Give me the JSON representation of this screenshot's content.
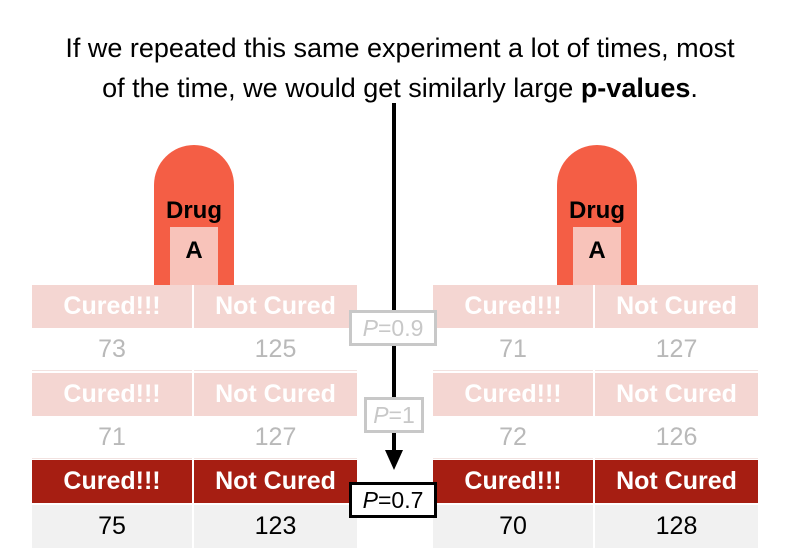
{
  "caption": {
    "line1": "If we repeated this same experiment a lot of times, most",
    "line2_prefix": "of the time, we would get similarly large ",
    "line2_bold": "p-values",
    "line2_suffix": "."
  },
  "pills": [
    {
      "line1": "Drug",
      "line2": "A"
    },
    {
      "line1": "Drug",
      "line2": "A"
    }
  ],
  "headers": {
    "cured": "Cured!!!",
    "not_cured": "Not Cured"
  },
  "left_table": {
    "rows": [
      {
        "cured": "73",
        "not_cured": "125"
      },
      {
        "cured": "71",
        "not_cured": "127"
      },
      {
        "cured": "75",
        "not_cured": "123"
      }
    ]
  },
  "right_table": {
    "rows": [
      {
        "cured": "71",
        "not_cured": "127"
      },
      {
        "cured": "72",
        "not_cured": "126"
      },
      {
        "cured": "70",
        "not_cured": "128"
      }
    ]
  },
  "p_values": [
    {
      "letter": "P",
      "value": "=0.9"
    },
    {
      "letter": "P",
      "value": "=1"
    },
    {
      "letter": "P",
      "value": "=0.7"
    }
  ],
  "colors": {
    "pill": "#f45e45",
    "header_strong": "#a61e12",
    "header_faded": "#f4d6d2"
  }
}
